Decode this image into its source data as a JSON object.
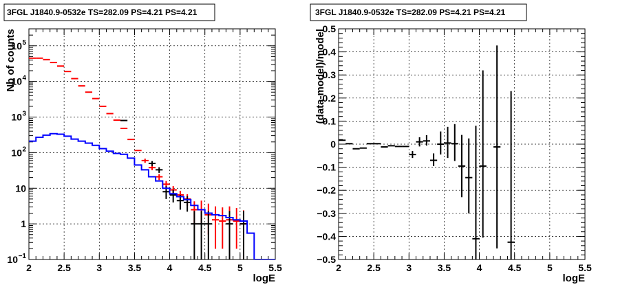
{
  "chart_data": [
    {
      "type": "scatter",
      "title": "3FGL J1840.9-0532e TS=282.09 PS=4.21 PS=4.21",
      "xlabel": "logE",
      "ylabel": "Nb of counts",
      "xlim": [
        2,
        5.5
      ],
      "ylim": [
        0.1,
        300000
      ],
      "yscale": "log",
      "grid": true,
      "x_ticks": [
        "2",
        "2.5",
        "3",
        "3.5",
        "4",
        "4.5",
        "5",
        "5.5"
      ],
      "y_ticks": [
        {
          "value": 0.1,
          "label": "10",
          "sup": "−1"
        },
        {
          "value": 1,
          "label": "1",
          "sup": ""
        },
        {
          "value": 10,
          "label": "10",
          "sup": ""
        },
        {
          "value": 100,
          "label": "10",
          "sup": "2"
        },
        {
          "value": 1000,
          "label": "10",
          "sup": "3"
        },
        {
          "value": 10000,
          "label": "10",
          "sup": "4"
        },
        {
          "value": 100000,
          "label": "10",
          "sup": "5"
        }
      ],
      "colors": {
        "model_total": "#ff0000",
        "data": "#000000",
        "background": "#0000ff"
      },
      "series": [
        {
          "kind": "points",
          "color": "#ff0000",
          "x": [
            2.05,
            2.15,
            2.25,
            2.35,
            2.45,
            2.55,
            2.65,
            2.75,
            2.85,
            2.95,
            3.05,
            3.15,
            3.25,
            3.35,
            3.45,
            3.55,
            3.65,
            3.75,
            3.85,
            3.95,
            4.05,
            4.15,
            4.25,
            4.35,
            4.45,
            4.55,
            4.65,
            4.75,
            4.85,
            4.95,
            5.05
          ],
          "y": [
            45000,
            45000,
            41000,
            34000,
            27000,
            19000,
            12000,
            7500,
            5000,
            3300,
            2000,
            1250,
            820,
            480,
            235,
            115,
            60,
            38,
            21,
            13,
            9,
            6.5,
            5,
            2.5,
            2.5,
            1.8,
            1.3,
            1.2,
            1.3,
            1.2,
            1.0
          ],
          "yerr_low": [
            0,
            0,
            0,
            0,
            0,
            0,
            0,
            0,
            0,
            0,
            0,
            0,
            0,
            0,
            0,
            0,
            8,
            6,
            4,
            3,
            2.5,
            2,
            1.8,
            1.5,
            1.5,
            1.3,
            1.1,
            1.0,
            1.1,
            1.0,
            0.9
          ],
          "yerr_high": [
            0,
            0,
            0,
            0,
            0,
            0,
            0,
            0,
            0,
            0,
            0,
            0,
            0,
            0,
            0,
            0,
            8,
            6,
            4,
            3,
            2.5,
            2,
            1.8,
            1.8,
            2.0,
            1.9,
            1.8,
            1.7,
            1.8,
            1.6,
            1.4
          ]
        },
        {
          "kind": "points",
          "color": "#000000",
          "x": [
            3.35,
            3.75,
            3.85,
            3.95,
            4.05,
            4.15,
            4.25,
            4.35,
            4.45,
            4.55,
            4.85,
            5.05
          ],
          "y": [
            800,
            50,
            33,
            8,
            6.5,
            4.5,
            4,
            1,
            1,
            1,
            1,
            1
          ],
          "yerr_low": [
            0,
            8,
            6,
            3,
            2.5,
            2,
            1.8,
            0.9,
            0.9,
            0.9,
            0.9,
            0.9
          ],
          "yerr_high": [
            0,
            8,
            6,
            3.5,
            2.5,
            2,
            2,
            1.3,
            1.3,
            1.3,
            1.3,
            1.3
          ]
        },
        {
          "kind": "step",
          "color": "#0000ff",
          "edges": [
            2.0,
            2.1,
            2.2,
            2.3,
            2.4,
            2.5,
            2.6,
            2.7,
            2.8,
            2.9,
            3.0,
            3.1,
            3.2,
            3.3,
            3.4,
            3.5,
            3.6,
            3.7,
            3.8,
            3.9,
            4.0,
            4.1,
            4.2,
            4.3,
            4.4,
            4.5,
            4.6,
            4.7,
            4.8,
            4.9,
            5.0,
            5.1,
            5.2,
            5.3,
            5.4,
            5.5
          ],
          "values": [
            210,
            270,
            310,
            340,
            330,
            290,
            240,
            210,
            185,
            160,
            130,
            110,
            95,
            90,
            70,
            45,
            33,
            21,
            16,
            10,
            7,
            5.8,
            4.8,
            3.3,
            2.5,
            2,
            1.8,
            1.7,
            1.5,
            1.3,
            1.2,
            0.55,
            0.1,
            0.1,
            0.1
          ]
        }
      ]
    },
    {
      "type": "scatter",
      "title": "3FGL J1840.9-0532e TS=282.09 PS=4.21 PS=4.21",
      "xlabel": "logE",
      "ylabel": "(data-model)/model",
      "xlim": [
        2,
        5.5
      ],
      "ylim": [
        -0.5,
        0.5
      ],
      "grid": true,
      "x_ticks": [
        "2",
        "2.5",
        "3",
        "3.5",
        "4",
        "4.5",
        "5",
        "5.5"
      ],
      "y_ticks": [
        "−0.5",
        "−0.4",
        "−0.3",
        "−0.2",
        "−0.1",
        "0",
        "0.1",
        "0.2",
        "0.3",
        "0.4",
        "0.5"
      ],
      "y_tick_values": [
        -0.5,
        -0.4,
        -0.3,
        -0.2,
        -0.1,
        0,
        0.1,
        0.2,
        0.3,
        0.4,
        0.5
      ],
      "colors": {
        "data": "#000000"
      },
      "series": [
        {
          "kind": "points",
          "color": "#000000",
          "x": [
            2.05,
            2.15,
            2.25,
            2.35,
            2.45,
            2.55,
            2.65,
            2.75,
            2.85,
            2.95,
            3.05,
            3.15,
            3.25,
            3.35,
            3.45,
            3.55,
            3.65,
            3.75,
            3.85,
            3.95,
            4.05,
            4.25,
            4.45
          ],
          "y": [
            0.017,
            0.002,
            -0.02,
            -0.017,
            0.002,
            0.002,
            -0.012,
            -0.007,
            -0.01,
            -0.01,
            -0.045,
            0.01,
            0.014,
            -0.07,
            0.0,
            0.005,
            0.002,
            -0.095,
            -0.145,
            -0.41,
            -0.095,
            -0.012,
            -0.425
          ],
          "yerr_low": [
            0,
            0,
            0,
            0,
            0,
            0,
            0,
            0,
            0,
            0,
            0.015,
            0.02,
            0.02,
            0.025,
            0.045,
            0.065,
            0.075,
            0.135,
            0.155,
            0.09,
            0.31,
            0.44,
            0.075
          ],
          "yerr_high": [
            0,
            0,
            0,
            0,
            0,
            0,
            0,
            0,
            0,
            0,
            0.015,
            0.02,
            0.025,
            0.03,
            0.055,
            0.07,
            0.085,
            0.135,
            0.17,
            0.49,
            0.415,
            0.44,
            0.655
          ]
        }
      ]
    }
  ]
}
